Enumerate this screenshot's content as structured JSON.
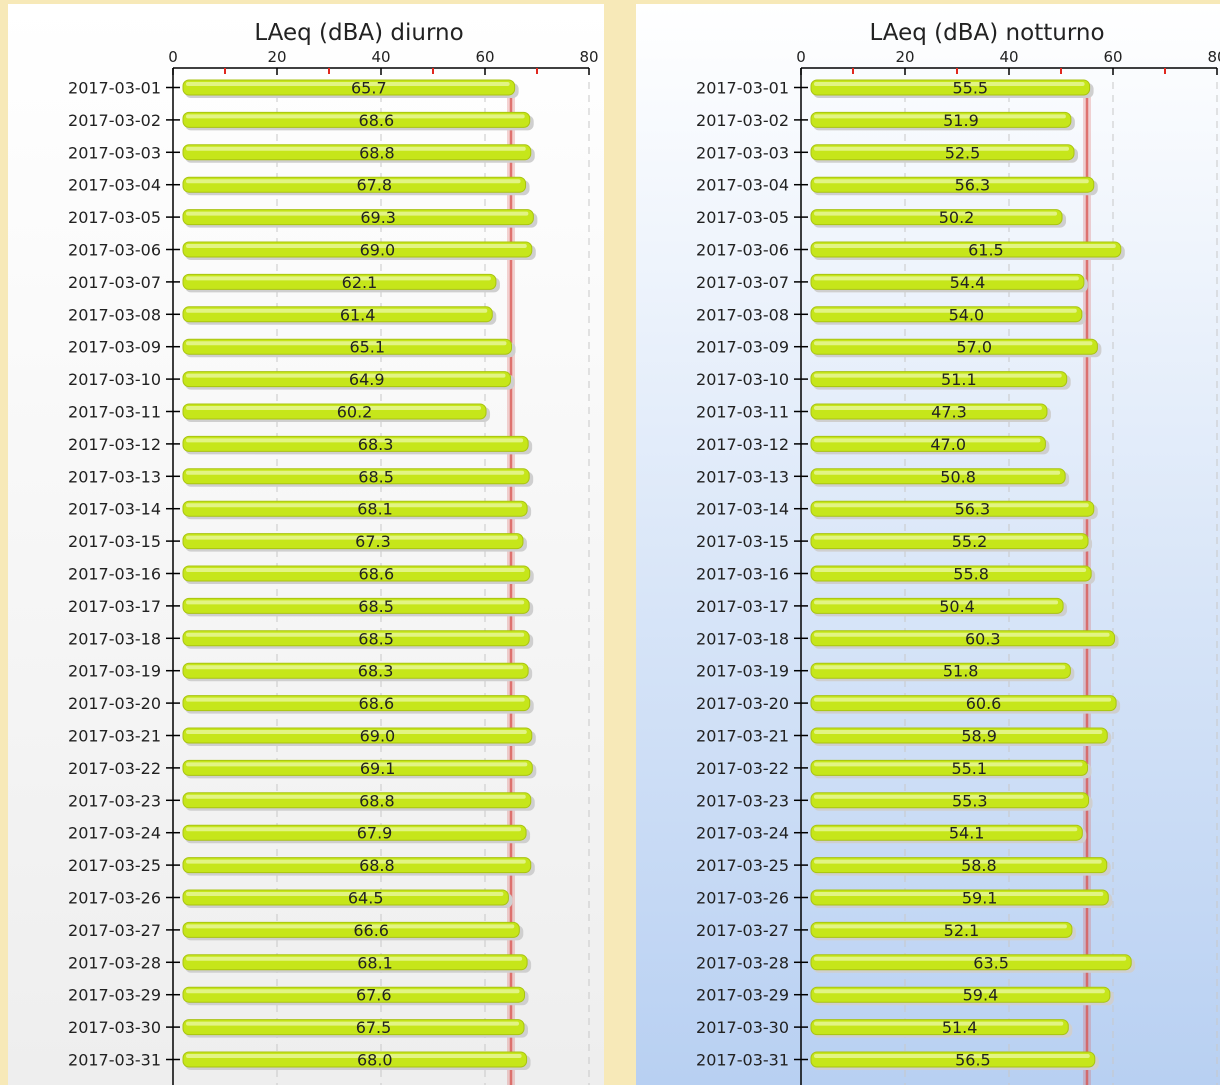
{
  "colors": {
    "page_background": "#f7e9b8",
    "bar_fill": "#c6e61a",
    "bar_highlight": "#e4f590",
    "bar_shadow": "#cfcfcf",
    "limit_line": "#d9534f",
    "grid_line": "#c8c8c8",
    "axis": "#000000",
    "minor_tick": "#e0281f",
    "left_panel_background": [
      "#ffffff",
      "#eeeeee"
    ],
    "right_panel_background": [
      "#ffffff",
      "#b8d0f2"
    ]
  },
  "chart_data": [
    {
      "type": "bar",
      "orientation": "horizontal",
      "title": "LAeq (dBA) diurno",
      "xlim": [
        0,
        80
      ],
      "xticks": [
        0,
        20,
        40,
        60,
        80
      ],
      "limit_line": 65,
      "grid": true,
      "categories": [
        "2017-03-01",
        "2017-03-02",
        "2017-03-03",
        "2017-03-04",
        "2017-03-05",
        "2017-03-06",
        "2017-03-07",
        "2017-03-08",
        "2017-03-09",
        "2017-03-10",
        "2017-03-11",
        "2017-03-12",
        "2017-03-13",
        "2017-03-14",
        "2017-03-15",
        "2017-03-16",
        "2017-03-17",
        "2017-03-18",
        "2017-03-19",
        "2017-03-20",
        "2017-03-21",
        "2017-03-22",
        "2017-03-23",
        "2017-03-24",
        "2017-03-25",
        "2017-03-26",
        "2017-03-27",
        "2017-03-28",
        "2017-03-29",
        "2017-03-30",
        "2017-03-31"
      ],
      "values": [
        65.7,
        68.6,
        68.8,
        67.8,
        69.3,
        69.0,
        62.1,
        61.4,
        65.1,
        64.9,
        60.2,
        68.3,
        68.5,
        68.1,
        67.3,
        68.6,
        68.5,
        68.5,
        68.3,
        68.6,
        69.0,
        69.1,
        68.8,
        67.9,
        68.8,
        64.5,
        66.6,
        68.1,
        67.6,
        67.5,
        68.0
      ],
      "labels": [
        "65.7",
        "68.6",
        "68.8",
        "67.8",
        "69.3",
        "69.0",
        "62.1",
        "61.4",
        "65.1",
        "64.9",
        "60.2",
        "68.3",
        "68.5",
        "68.1",
        "67.3",
        "68.6",
        "68.5",
        "68.5",
        "68.3",
        "68.6",
        "69.0",
        "69.1",
        "68.8",
        "67.9",
        "68.8",
        "64.5",
        "66.6",
        "68.1",
        "67.6",
        "67.5",
        "68.0"
      ]
    },
    {
      "type": "bar",
      "orientation": "horizontal",
      "title": "LAeq (dBA) notturno",
      "xlim": [
        0,
        80
      ],
      "xticks": [
        0,
        20,
        40,
        60,
        80
      ],
      "limit_line": 55,
      "grid": true,
      "categories": [
        "2017-03-01",
        "2017-03-02",
        "2017-03-03",
        "2017-03-04",
        "2017-03-05",
        "2017-03-06",
        "2017-03-07",
        "2017-03-08",
        "2017-03-09",
        "2017-03-10",
        "2017-03-11",
        "2017-03-12",
        "2017-03-13",
        "2017-03-14",
        "2017-03-15",
        "2017-03-16",
        "2017-03-17",
        "2017-03-18",
        "2017-03-19",
        "2017-03-20",
        "2017-03-21",
        "2017-03-22",
        "2017-03-23",
        "2017-03-24",
        "2017-03-25",
        "2017-03-26",
        "2017-03-27",
        "2017-03-28",
        "2017-03-29",
        "2017-03-30",
        "2017-03-31"
      ],
      "values": [
        55.5,
        51.9,
        52.5,
        56.3,
        50.2,
        61.5,
        54.4,
        54.0,
        57.0,
        51.1,
        47.3,
        47.0,
        50.8,
        56.3,
        55.2,
        55.8,
        50.4,
        60.3,
        51.8,
        60.6,
        58.9,
        55.1,
        55.3,
        54.1,
        58.8,
        59.1,
        52.1,
        63.5,
        59.4,
        51.4,
        56.5
      ],
      "labels": [
        "55.5",
        "51.9",
        "52.5",
        "56.3",
        "50.2",
        "61.5",
        "54.4",
        "54.0",
        "57.0",
        "51.1",
        "47.3",
        "47.0",
        "50.8",
        "56.3",
        "55.2",
        "55.8",
        "50.4",
        "60.3",
        "51.8",
        "60.6",
        "58.9",
        "55.1",
        "55.3",
        "54.1",
        "58.8",
        "59.1",
        "52.1",
        "63.5",
        "59.4",
        "51.4",
        "56.5"
      ]
    }
  ]
}
